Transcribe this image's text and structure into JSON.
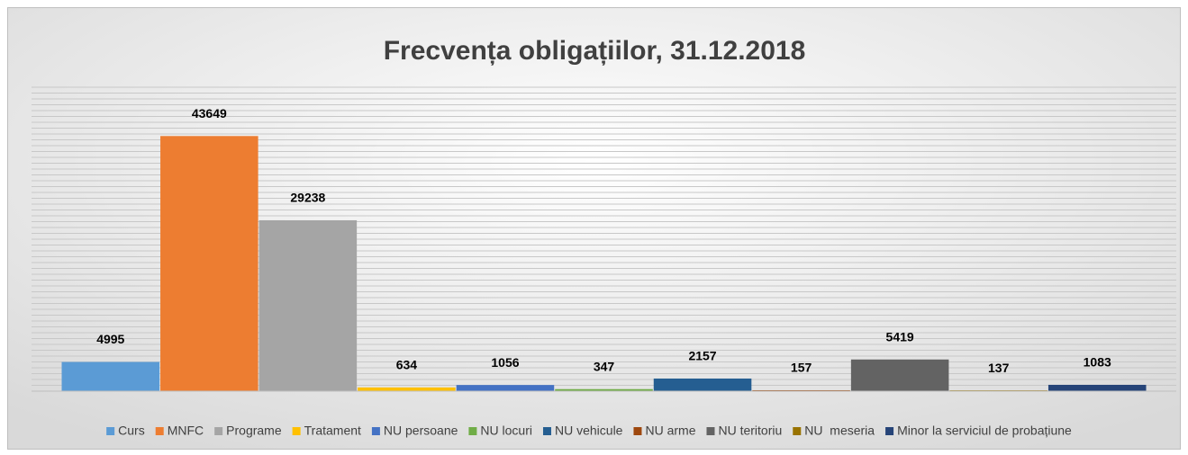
{
  "chart_data": {
    "type": "bar",
    "title": "Frecvența obligațiilor, 31.12.2018",
    "categories": [
      null
    ],
    "series": [
      {
        "name": "Curs",
        "color": "#5b9bd5",
        "values": [
          4995
        ]
      },
      {
        "name": "MNFC",
        "color": "#ed7d31",
        "values": [
          43649
        ]
      },
      {
        "name": "Programe",
        "color": "#a5a5a5",
        "values": [
          29238
        ]
      },
      {
        "name": "Tratament",
        "color": "#ffc000",
        "values": [
          634
        ]
      },
      {
        "name": "NU persoane",
        "color": "#4472c4",
        "values": [
          1056
        ]
      },
      {
        "name": "NU locuri",
        "color": "#70ad47",
        "values": [
          347
        ]
      },
      {
        "name": "NU vehicule",
        "color": "#255e91",
        "values": [
          2157
        ]
      },
      {
        "name": "NU arme",
        "color": "#9e480e",
        "values": [
          157
        ]
      },
      {
        "name": "NU teritoriu",
        "color": "#636363",
        "values": [
          5419
        ]
      },
      {
        "name": "NU  meseria",
        "color": "#997300",
        "values": [
          137
        ]
      },
      {
        "name": "Minor la serviciul de probațiune",
        "color": "#264478",
        "values": [
          1083
        ]
      }
    ],
    "ylim": [
      0,
      52000
    ],
    "yticks": [
      0,
      1000,
      2000,
      3000,
      4000,
      5000,
      6000,
      7000,
      8000,
      9000,
      10000,
      11000,
      12000,
      13000,
      14000,
      15000,
      16000,
      17000,
      18000,
      19000,
      20000,
      21000,
      22000,
      23000,
      24000,
      25000,
      26000,
      27000,
      28000,
      29000,
      30000,
      31000,
      32000,
      33000,
      34000,
      35000,
      36000,
      37000,
      38000,
      39000,
      40000,
      41000,
      42000,
      43000,
      44000,
      45000,
      46000,
      47000,
      48000,
      49000,
      50000,
      51000,
      52000
    ],
    "grid": true,
    "legend": "bottom"
  }
}
